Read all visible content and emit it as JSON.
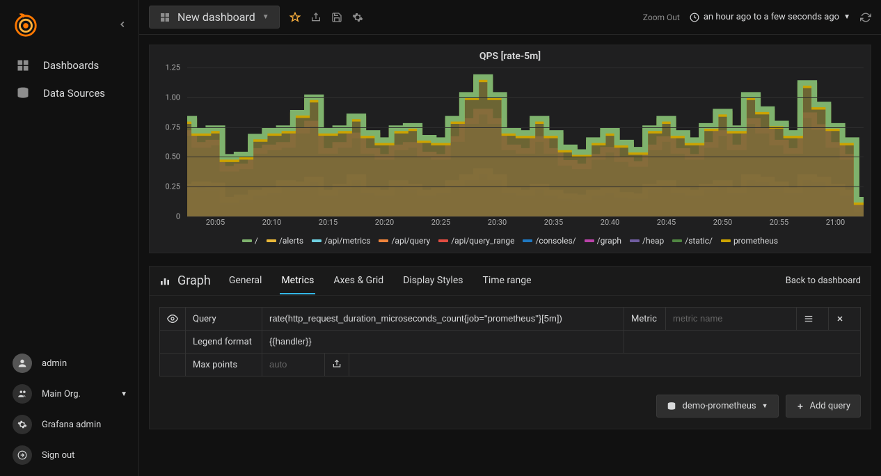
{
  "sidebar": {
    "nav": [
      {
        "label": "Dashboards",
        "icon": "dashboards-icon"
      },
      {
        "label": "Data Sources",
        "icon": "datasources-icon"
      }
    ],
    "bottom": [
      {
        "label": "admin",
        "icon": "avatar-icon"
      },
      {
        "label": "Main Org.",
        "icon": "org-icon",
        "has_caret": true
      },
      {
        "label": "Grafana admin",
        "icon": "gear-icon"
      },
      {
        "label": "Sign out",
        "icon": "signout-icon"
      }
    ]
  },
  "topbar": {
    "dashboard_title": "New dashboard",
    "zoom_label": "Zoom Out",
    "time_label": "an hour ago to a few seconds ago"
  },
  "chart": {
    "title": "QPS [rate-5m]",
    "type": "stacked-area",
    "background_color": "#1f1f20",
    "grid_color": "#2e2e2e",
    "text_color": "#aaaaaa",
    "ylim": [
      0,
      1.25
    ],
    "yticks": [
      0,
      0.25,
      0.5,
      0.75,
      1.0,
      1.25
    ],
    "xticks": [
      "20:05",
      "20:10",
      "20:15",
      "20:20",
      "20:25",
      "20:30",
      "20:35",
      "20:40",
      "20:45",
      "20:50",
      "20:55",
      "21:00"
    ],
    "legend": [
      {
        "label": "/",
        "color": "#7eb26d"
      },
      {
        "label": "/alerts",
        "color": "#eab839"
      },
      {
        "label": "/api/metrics",
        "color": "#6ed0e0"
      },
      {
        "label": "/api/query",
        "color": "#ef843c"
      },
      {
        "label": "/api/query_range",
        "color": "#e24d42"
      },
      {
        "label": "/consoles/",
        "color": "#1f78c1"
      },
      {
        "label": "/graph",
        "color": "#ba43a9"
      },
      {
        "label": "/heap",
        "color": "#705da0"
      },
      {
        "label": "/static/",
        "color": "#508642"
      },
      {
        "label": "prometheus",
        "color": "#cca300"
      }
    ],
    "layers": [
      {
        "color_fill": "#5b7b82",
        "color_line": "#6ed0e0",
        "opacity": 0.85,
        "values": [
          0.22,
          0.24,
          0.23,
          0.12,
          0.14,
          0.18,
          0.2,
          0.25,
          0.24,
          0.28,
          0.18,
          0.22,
          0.3,
          0.2,
          0.18,
          0.25,
          0.22,
          0.18,
          0.2,
          0.25,
          0.3,
          0.35,
          0.3,
          0.2,
          0.18,
          0.22,
          0.18,
          0.15,
          0.14,
          0.18,
          0.2,
          0.16,
          0.15,
          0.22,
          0.25,
          0.2,
          0.18,
          0.22,
          0.25,
          0.2,
          0.3,
          0.28,
          0.24,
          0.2,
          0.3,
          0.28,
          0.22,
          0.18,
          0.05
        ]
      },
      {
        "color_fill": "#bd6a3e",
        "color_line": "#ef843c",
        "opacity": 0.85,
        "values": [
          0.25,
          0.27,
          0.26,
          0.14,
          0.16,
          0.2,
          0.22,
          0.28,
          0.27,
          0.31,
          0.2,
          0.25,
          0.33,
          0.22,
          0.2,
          0.28,
          0.25,
          0.2,
          0.22,
          0.28,
          0.33,
          0.38,
          0.33,
          0.22,
          0.2,
          0.25,
          0.2,
          0.17,
          0.16,
          0.2,
          0.22,
          0.18,
          0.17,
          0.25,
          0.28,
          0.22,
          0.2,
          0.25,
          0.28,
          0.22,
          0.33,
          0.31,
          0.27,
          0.22,
          0.33,
          0.31,
          0.25,
          0.2,
          0.06
        ]
      },
      {
        "color_fill": "#7e3f3d",
        "color_line": "#a04440",
        "opacity": 0.85,
        "values": [
          0.7,
          0.6,
          0.62,
          0.4,
          0.42,
          0.55,
          0.58,
          0.6,
          0.72,
          0.78,
          0.55,
          0.6,
          0.68,
          0.55,
          0.5,
          0.58,
          0.6,
          0.52,
          0.5,
          0.65,
          0.8,
          0.88,
          0.8,
          0.58,
          0.55,
          0.65,
          0.55,
          0.45,
          0.42,
          0.5,
          0.56,
          0.48,
          0.44,
          0.58,
          0.65,
          0.55,
          0.5,
          0.6,
          0.7,
          0.58,
          0.8,
          0.72,
          0.62,
          0.55,
          0.85,
          0.75,
          0.6,
          0.5,
          0.1
        ]
      },
      {
        "color_fill": "#7f773a",
        "color_line": "#cca300",
        "opacity": 0.8,
        "values": [
          0.8,
          0.7,
          0.72,
          0.48,
          0.5,
          0.65,
          0.7,
          0.72,
          0.85,
          0.98,
          0.7,
          0.72,
          0.82,
          0.68,
          0.62,
          0.72,
          0.74,
          0.64,
          0.62,
          0.8,
          1.0,
          1.15,
          1.0,
          0.7,
          0.68,
          0.8,
          0.68,
          0.56,
          0.52,
          0.62,
          0.7,
          0.6,
          0.54,
          0.72,
          0.8,
          0.68,
          0.62,
          0.74,
          0.86,
          0.72,
          1.0,
          0.88,
          0.76,
          0.68,
          1.1,
          0.92,
          0.74,
          0.62,
          0.12
        ]
      },
      {
        "color_fill": "none",
        "color_line": "#7eb26d",
        "opacity": 1.0,
        "values": [
          0.82,
          0.72,
          0.74,
          0.5,
          0.52,
          0.67,
          0.72,
          0.74,
          0.87,
          1.0,
          0.72,
          0.74,
          0.84,
          0.7,
          0.64,
          0.74,
          0.76,
          0.66,
          0.64,
          0.82,
          1.02,
          1.17,
          1.02,
          0.72,
          0.7,
          0.82,
          0.7,
          0.58,
          0.54,
          0.64,
          0.72,
          0.62,
          0.56,
          0.74,
          0.82,
          0.7,
          0.64,
          0.76,
          0.88,
          0.74,
          1.02,
          0.9,
          0.78,
          0.7,
          1.12,
          0.94,
          0.76,
          0.64,
          0.14
        ]
      }
    ]
  },
  "editor": {
    "panel_type": "Graph",
    "tabs": [
      "General",
      "Metrics",
      "Axes & Grid",
      "Display Styles",
      "Time range"
    ],
    "active_tab": "Metrics",
    "back_label": "Back to dashboard",
    "rows": {
      "query_label": "Query",
      "query_value": "rate(http_request_duration_microseconds_count{job=\"prometheus\"}[5m])",
      "metric_label": "Metric",
      "metric_placeholder": "metric name",
      "legend_label": "Legend format",
      "legend_value": "{{handler}}",
      "maxpoints_label": "Max points",
      "maxpoints_placeholder": "auto"
    },
    "datasource_label": "demo-prometheus",
    "add_query_label": "Add query"
  }
}
